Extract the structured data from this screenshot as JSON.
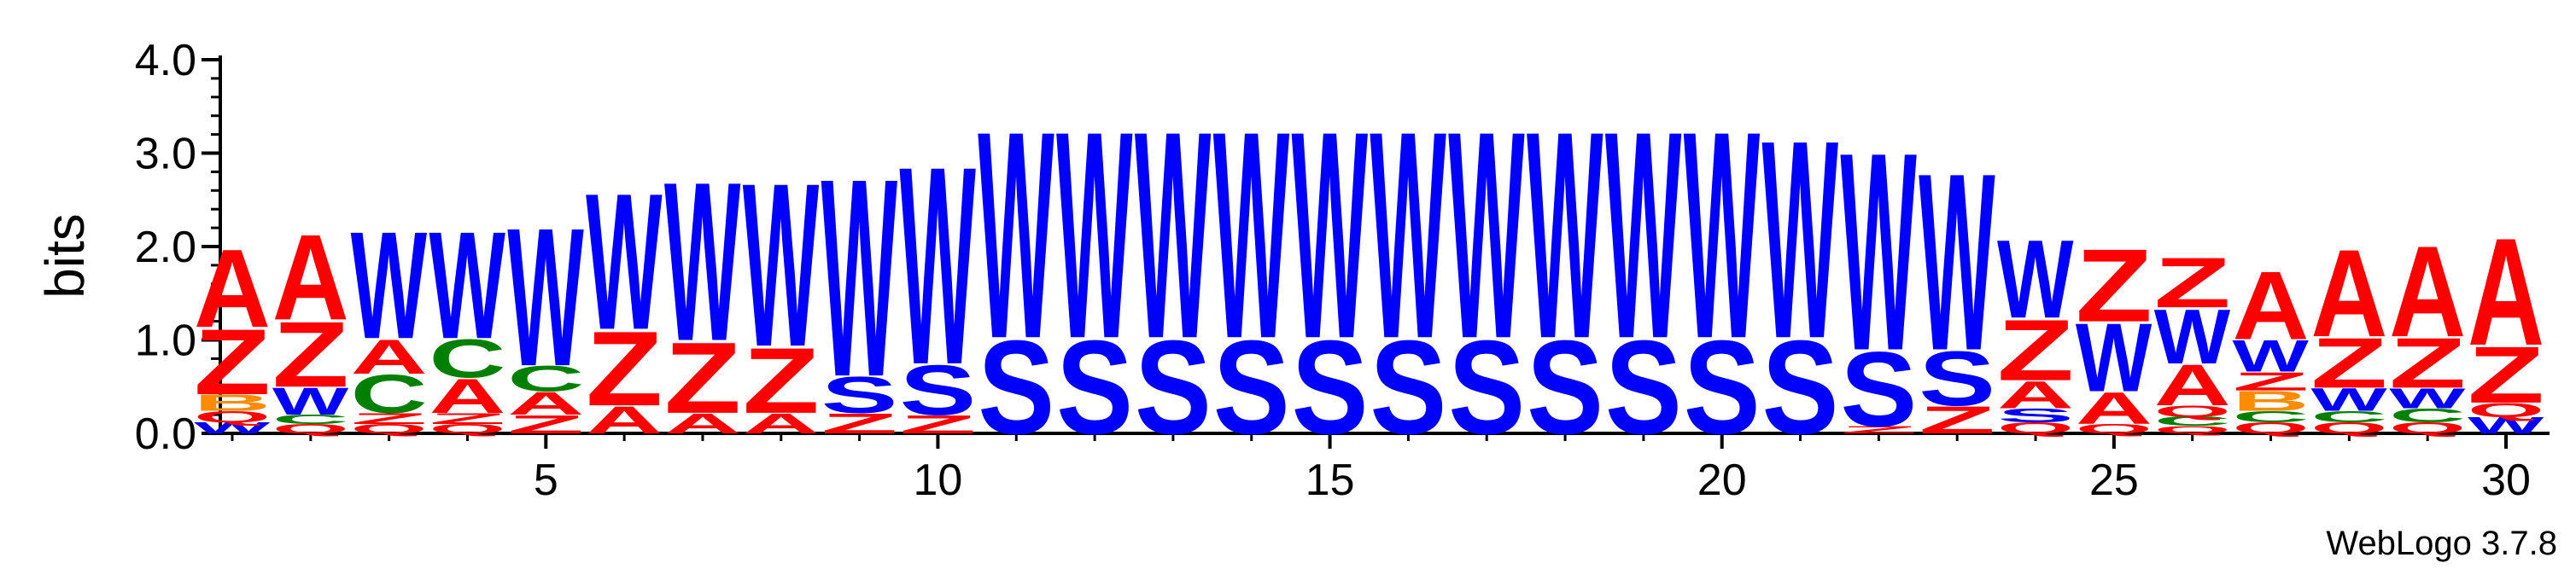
{
  "chart_data": {
    "type": "sequence-logo",
    "ylabel": "bits",
    "ylim": [
      0,
      4.0
    ],
    "yticks": [
      0.0,
      1.0,
      2.0,
      3.0,
      4.0
    ],
    "ytick_labels": [
      "0.0",
      "1.0",
      "2.0",
      "3.0",
      "4.0"
    ],
    "xlim": [
      1,
      30
    ],
    "xticks": [
      5,
      10,
      15,
      20,
      25,
      30
    ],
    "xtick_labels": [
      "5",
      "10",
      "15",
      "20",
      "25",
      "30"
    ],
    "colors": {
      "A": "#ff0000",
      "Z": "#ff0000",
      "W": "#0000ff",
      "S": "#0000ff",
      "C": "#008000",
      "Q": "#ff0000",
      "B": "#ff8c00"
    },
    "positions": [
      {
        "pos": 1,
        "stack": [
          [
            "W",
            0.12
          ],
          [
            "Q",
            0.12
          ],
          [
            "B",
            0.18
          ],
          [
            "Z",
            0.72
          ],
          [
            "A",
            0.86
          ]
        ]
      },
      {
        "pos": 2,
        "stack": [
          [
            "Q",
            0.1
          ],
          [
            "C",
            0.1
          ],
          [
            "W",
            0.3
          ],
          [
            "Z",
            0.72
          ],
          [
            "A",
            0.94
          ]
        ]
      },
      {
        "pos": 3,
        "stack": [
          [
            "Q",
            0.1
          ],
          [
            "Z",
            0.12
          ],
          [
            "C",
            0.42
          ],
          [
            "A",
            0.38
          ],
          [
            "W",
            1.18
          ]
        ]
      },
      {
        "pos": 4,
        "stack": [
          [
            "Q",
            0.1
          ],
          [
            "Z",
            0.12
          ],
          [
            "A",
            0.38
          ],
          [
            "C",
            0.42
          ],
          [
            "W",
            1.18
          ]
        ]
      },
      {
        "pos": 5,
        "stack": [
          [
            "Z",
            0.2
          ],
          [
            "A",
            0.25
          ],
          [
            "C",
            0.28
          ],
          [
            "W",
            1.52
          ]
        ]
      },
      {
        "pos": 6,
        "stack": [
          [
            "A",
            0.3
          ],
          [
            "Z",
            0.82
          ],
          [
            "W",
            1.5
          ]
        ]
      },
      {
        "pos": 7,
        "stack": [
          [
            "A",
            0.22
          ],
          [
            "Z",
            0.78
          ],
          [
            "W",
            1.75
          ]
        ]
      },
      {
        "pos": 8,
        "stack": [
          [
            "A",
            0.22
          ],
          [
            "Z",
            0.72
          ],
          [
            "W",
            1.8
          ]
        ]
      },
      {
        "pos": 9,
        "stack": [
          [
            "Z",
            0.22
          ],
          [
            "S",
            0.4
          ],
          [
            "W",
            2.18
          ]
        ]
      },
      {
        "pos": 10,
        "stack": [
          [
            "Z",
            0.2
          ],
          [
            "S",
            0.55
          ],
          [
            "W",
            2.18
          ]
        ]
      },
      {
        "pos": 11,
        "stack": [
          [
            "S",
            1.03
          ],
          [
            "W",
            2.28
          ]
        ]
      },
      {
        "pos": 12,
        "stack": [
          [
            "S",
            1.03
          ],
          [
            "W",
            2.28
          ]
        ]
      },
      {
        "pos": 13,
        "stack": [
          [
            "S",
            1.03
          ],
          [
            "W",
            2.28
          ]
        ]
      },
      {
        "pos": 14,
        "stack": [
          [
            "S",
            1.03
          ],
          [
            "W",
            2.28
          ]
        ]
      },
      {
        "pos": 15,
        "stack": [
          [
            "S",
            1.03
          ],
          [
            "W",
            2.28
          ]
        ]
      },
      {
        "pos": 16,
        "stack": [
          [
            "S",
            1.03
          ],
          [
            "W",
            2.28
          ]
        ]
      },
      {
        "pos": 17,
        "stack": [
          [
            "S",
            1.03
          ],
          [
            "W",
            2.28
          ]
        ]
      },
      {
        "pos": 18,
        "stack": [
          [
            "S",
            1.03
          ],
          [
            "W",
            2.28
          ]
        ]
      },
      {
        "pos": 19,
        "stack": [
          [
            "S",
            1.03
          ],
          [
            "W",
            2.28
          ]
        ]
      },
      {
        "pos": 20,
        "stack": [
          [
            "S",
            1.03
          ],
          [
            "W",
            2.28
          ]
        ]
      },
      {
        "pos": 21,
        "stack": [
          [
            "S",
            1.03
          ],
          [
            "W",
            2.18
          ]
        ]
      },
      {
        "pos": 22,
        "stack": [
          [
            "Z",
            0.08
          ],
          [
            "S",
            0.82
          ],
          [
            "W",
            2.18
          ]
        ]
      },
      {
        "pos": 23,
        "stack": [
          [
            "Z",
            0.3
          ],
          [
            "S",
            0.6
          ],
          [
            "W",
            1.95
          ]
        ]
      },
      {
        "pos": 24,
        "stack": [
          [
            "Q",
            0.12
          ],
          [
            "S",
            0.15
          ],
          [
            "A",
            0.3
          ],
          [
            "Z",
            0.67
          ],
          [
            "W",
            0.86
          ]
        ]
      },
      {
        "pos": 25,
        "stack": [
          [
            "Q",
            0.1
          ],
          [
            "A",
            0.35
          ],
          [
            "W",
            0.75
          ],
          [
            "Z",
            0.8
          ]
        ]
      },
      {
        "pos": 26,
        "stack": [
          [
            "Q",
            0.08
          ],
          [
            "C",
            0.1
          ],
          [
            "Q",
            0.12
          ],
          [
            "A",
            0.45
          ],
          [
            "W",
            0.6
          ],
          [
            "Z",
            0.55
          ]
        ]
      },
      {
        "pos": 27,
        "stack": [
          [
            "Q",
            0.12
          ],
          [
            "C",
            0.12
          ],
          [
            "B",
            0.22
          ],
          [
            "Z",
            0.2
          ],
          [
            "W",
            0.35
          ],
          [
            "A",
            0.75
          ]
        ]
      },
      {
        "pos": 28,
        "stack": [
          [
            "Q",
            0.12
          ],
          [
            "C",
            0.12
          ],
          [
            "W",
            0.25
          ],
          [
            "Z",
            0.55
          ],
          [
            "A",
            0.96
          ]
        ]
      },
      {
        "pos": 29,
        "stack": [
          [
            "Q",
            0.12
          ],
          [
            "C",
            0.15
          ],
          [
            "W",
            0.22
          ],
          [
            "Z",
            0.55
          ],
          [
            "A",
            1.0
          ]
        ]
      },
      {
        "pos": 30,
        "stack": [
          [
            "W",
            0.18
          ],
          [
            "Q",
            0.15
          ],
          [
            "Z",
            0.62
          ],
          [
            "A",
            1.18
          ]
        ]
      }
    ]
  },
  "footer": {
    "credit": "WebLogo 3.7.8"
  }
}
